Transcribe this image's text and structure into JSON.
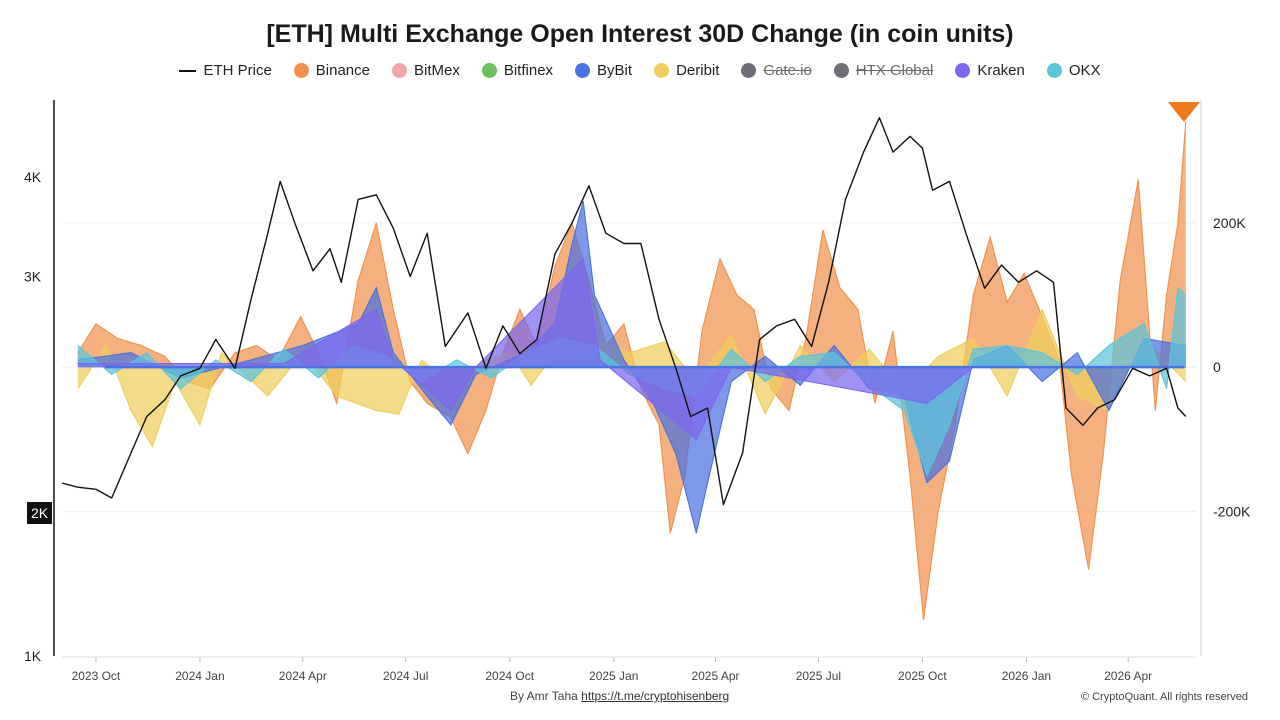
{
  "title": "[ETH] Multi Exchange Open Interest 30D Change (in coin units)",
  "legend": [
    {
      "label": "ETH Price",
      "kind": "line",
      "color": "#111111",
      "hidden": false
    },
    {
      "label": "Binance",
      "kind": "dot",
      "color": "#f0914d",
      "hidden": false
    },
    {
      "label": "BitMex",
      "kind": "dot",
      "color": "#f4a5a5",
      "hidden": false
    },
    {
      "label": "Bitfinex",
      "kind": "dot",
      "color": "#6cbf5c",
      "hidden": false
    },
    {
      "label": "ByBit",
      "kind": "dot",
      "color": "#4a72e0",
      "hidden": false
    },
    {
      "label": "Deribit",
      "kind": "dot",
      "color": "#efcd5c",
      "hidden": false
    },
    {
      "label": "Gate.io",
      "kind": "dot",
      "color": "#6e6e78",
      "hidden": true
    },
    {
      "label": "HTX Global",
      "kind": "dot",
      "color": "#6e6e78",
      "hidden": true
    },
    {
      "label": "Kraken",
      "kind": "dot",
      "color": "#7b68ee",
      "hidden": false
    },
    {
      "label": "OKX",
      "kind": "dot",
      "color": "#5bc5dc",
      "hidden": false
    }
  ],
  "price_marker_label": "2K",
  "footer": {
    "author": "By Amr Taha",
    "link": "https://t.me/cryptohisenberg",
    "copyright": "© CryptoQuant. All rights reserved"
  },
  "chart_data": {
    "type": "area",
    "x_axis": {
      "ticks": [
        "2023 Oct",
        "2024 Jan",
        "2024 Apr",
        "2024 Jul",
        "2024 Oct",
        "2025 Jan",
        "2025 Apr",
        "2025 Jul",
        "2025 Oct",
        "2026 Jan",
        "2026 Apr"
      ],
      "range": [
        "2023-09-01",
        "2026-05-31"
      ]
    },
    "y_left": {
      "label": "",
      "ticks": [
        "1K",
        "2K",
        "3K",
        "4K"
      ],
      "scale": "log",
      "range": [
        1000,
        5000
      ]
    },
    "y_right": {
      "label": "",
      "ticks": [
        "-200K",
        "0",
        "200K"
      ],
      "range": [
        -400000,
        370000
      ]
    },
    "grid": "horizontal",
    "price_series": {
      "name": "ETH Price",
      "points": [
        [
          "2023-09-01",
          1650
        ],
        [
          "2023-09-15",
          1630
        ],
        [
          "2023-10-01",
          1620
        ],
        [
          "2023-10-15",
          1580
        ],
        [
          "2023-11-01",
          1800
        ],
        [
          "2023-11-15",
          2000
        ],
        [
          "2023-12-01",
          2100
        ],
        [
          "2023-12-15",
          2250
        ],
        [
          "2024-01-01",
          2300
        ],
        [
          "2024-01-15",
          2500
        ],
        [
          "2024-02-01",
          2300
        ],
        [
          "2024-02-15",
          2800
        ],
        [
          "2024-03-01",
          3400
        ],
        [
          "2024-03-12",
          3950
        ],
        [
          "2024-03-25",
          3500
        ],
        [
          "2024-04-10",
          3050
        ],
        [
          "2024-04-25",
          3250
        ],
        [
          "2024-05-05",
          2950
        ],
        [
          "2024-05-20",
          3750
        ],
        [
          "2024-06-05",
          3800
        ],
        [
          "2024-06-20",
          3450
        ],
        [
          "2024-07-05",
          3000
        ],
        [
          "2024-07-20",
          3400
        ],
        [
          "2024-08-05",
          2450
        ],
        [
          "2024-08-25",
          2700
        ],
        [
          "2024-09-10",
          2300
        ],
        [
          "2024-09-25",
          2600
        ],
        [
          "2024-10-10",
          2400
        ],
        [
          "2024-10-25",
          2500
        ],
        [
          "2024-11-10",
          3200
        ],
        [
          "2024-11-25",
          3500
        ],
        [
          "2024-12-10",
          3900
        ],
        [
          "2024-12-25",
          3400
        ],
        [
          "2025-01-10",
          3300
        ],
        [
          "2025-01-25",
          3300
        ],
        [
          "2025-02-10",
          2650
        ],
        [
          "2025-02-25",
          2300
        ],
        [
          "2025-03-10",
          2000
        ],
        [
          "2025-03-25",
          2050
        ],
        [
          "2025-04-08",
          1550
        ],
        [
          "2025-04-25",
          1800
        ],
        [
          "2025-05-10",
          2500
        ],
        [
          "2025-05-25",
          2600
        ],
        [
          "2025-06-10",
          2650
        ],
        [
          "2025-06-25",
          2450
        ],
        [
          "2025-07-10",
          2950
        ],
        [
          "2025-07-25",
          3750
        ],
        [
          "2025-08-10",
          4300
        ],
        [
          "2025-08-24",
          4750
        ],
        [
          "2025-09-05",
          4300
        ],
        [
          "2025-09-20",
          4500
        ],
        [
          "2025-10-01",
          4350
        ],
        [
          "2025-10-10",
          3850
        ],
        [
          "2025-10-25",
          3950
        ],
        [
          "2025-11-10",
          3350
        ],
        [
          "2025-11-25",
          2900
        ],
        [
          "2025-12-10",
          3100
        ],
        [
          "2025-12-25",
          2950
        ],
        [
          "2026-01-10",
          3050
        ],
        [
          "2026-01-25",
          2950
        ],
        [
          "2026-02-05",
          2050
        ],
        [
          "2026-02-20",
          1950
        ],
        [
          "2026-03-05",
          2050
        ],
        [
          "2026-03-20",
          2100
        ],
        [
          "2026-04-05",
          2300
        ],
        [
          "2026-04-20",
          2250
        ],
        [
          "2026-05-05",
          2300
        ],
        [
          "2026-05-15",
          2050
        ],
        [
          "2026-05-22",
          2000
        ]
      ]
    },
    "oi_series": [
      {
        "name": "Binance",
        "points": [
          [
            "2023-09-15",
            20000
          ],
          [
            "2023-10-01",
            60000
          ],
          [
            "2023-10-20",
            40000
          ],
          [
            "2023-11-10",
            30000
          ],
          [
            "2023-12-01",
            15000
          ],
          [
            "2023-12-20",
            -20000
          ],
          [
            "2024-01-10",
            -30000
          ],
          [
            "2024-02-01",
            20000
          ],
          [
            "2024-02-20",
            30000
          ],
          [
            "2024-03-10",
            10000
          ],
          [
            "2024-03-30",
            70000
          ],
          [
            "2024-04-15",
            20000
          ],
          [
            "2024-05-01",
            -50000
          ],
          [
            "2024-05-20",
            120000
          ],
          [
            "2024-06-05",
            200000
          ],
          [
            "2024-06-20",
            80000
          ],
          [
            "2024-07-05",
            -20000
          ],
          [
            "2024-07-20",
            -50000
          ],
          [
            "2024-08-10",
            -70000
          ],
          [
            "2024-08-25",
            -120000
          ],
          [
            "2024-09-10",
            -60000
          ],
          [
            "2024-09-25",
            20000
          ],
          [
            "2024-10-10",
            80000
          ],
          [
            "2024-10-25",
            30000
          ],
          [
            "2024-11-10",
            140000
          ],
          [
            "2024-11-25",
            200000
          ],
          [
            "2024-12-10",
            120000
          ],
          [
            "2024-12-25",
            30000
          ],
          [
            "2025-01-10",
            60000
          ],
          [
            "2025-01-25",
            -30000
          ],
          [
            "2025-02-10",
            -80000
          ],
          [
            "2025-02-20",
            -230000
          ],
          [
            "2025-03-05",
            -150000
          ],
          [
            "2025-03-20",
            50000
          ],
          [
            "2025-04-05",
            150000
          ],
          [
            "2025-04-20",
            100000
          ],
          [
            "2025-05-05",
            80000
          ],
          [
            "2025-05-20",
            -30000
          ],
          [
            "2025-06-05",
            -60000
          ],
          [
            "2025-06-20",
            40000
          ],
          [
            "2025-07-05",
            190000
          ],
          [
            "2025-07-20",
            110000
          ],
          [
            "2025-08-05",
            80000
          ],
          [
            "2025-08-20",
            -50000
          ],
          [
            "2025-09-05",
            50000
          ],
          [
            "2025-09-20",
            -150000
          ],
          [
            "2025-10-02",
            -350000
          ],
          [
            "2025-10-15",
            -200000
          ],
          [
            "2025-10-30",
            -80000
          ],
          [
            "2025-11-15",
            100000
          ],
          [
            "2025-11-30",
            180000
          ],
          [
            "2025-12-15",
            90000
          ],
          [
            "2025-12-30",
            130000
          ],
          [
            "2026-01-15",
            70000
          ],
          [
            "2026-01-30",
            10000
          ],
          [
            "2026-02-10",
            -150000
          ],
          [
            "2026-02-25",
            -280000
          ],
          [
            "2026-03-10",
            -120000
          ],
          [
            "2026-03-25",
            120000
          ],
          [
            "2026-04-10",
            260000
          ],
          [
            "2026-04-25",
            -60000
          ],
          [
            "2026-05-05",
            100000
          ],
          [
            "2026-05-15",
            200000
          ],
          [
            "2026-05-22",
            340000
          ]
        ]
      },
      {
        "name": "Deribit",
        "points": [
          [
            "2023-09-15",
            -30000
          ],
          [
            "2023-10-10",
            30000
          ],
          [
            "2023-11-01",
            -60000
          ],
          [
            "2023-11-20",
            -110000
          ],
          [
            "2023-12-10",
            -20000
          ],
          [
            "2024-01-01",
            -80000
          ],
          [
            "2024-01-20",
            20000
          ],
          [
            "2024-02-10",
            -10000
          ],
          [
            "2024-03-01",
            -40000
          ],
          [
            "2024-04-01",
            20000
          ],
          [
            "2024-05-01",
            -40000
          ],
          [
            "2024-06-05",
            -60000
          ],
          [
            "2024-06-25",
            -65000
          ],
          [
            "2024-07-15",
            10000
          ],
          [
            "2024-08-15",
            -30000
          ],
          [
            "2024-09-10",
            10000
          ],
          [
            "2024-10-01",
            20000
          ],
          [
            "2024-10-20",
            -25000
          ],
          [
            "2024-11-15",
            30000
          ],
          [
            "2024-12-15",
            40000
          ],
          [
            "2025-01-15",
            20000
          ],
          [
            "2025-02-15",
            35000
          ],
          [
            "2025-03-15",
            -20000
          ],
          [
            "2025-04-15",
            45000
          ],
          [
            "2025-05-15",
            -65000
          ],
          [
            "2025-06-15",
            30000
          ],
          [
            "2025-07-15",
            -20000
          ],
          [
            "2025-08-15",
            25000
          ],
          [
            "2025-09-15",
            -35000
          ],
          [
            "2025-10-15",
            15000
          ],
          [
            "2025-11-15",
            40000
          ],
          [
            "2025-12-15",
            -40000
          ],
          [
            "2026-01-15",
            80000
          ],
          [
            "2026-02-15",
            -40000
          ],
          [
            "2026-03-15",
            -60000
          ],
          [
            "2026-04-15",
            40000
          ],
          [
            "2026-05-22",
            -20000
          ]
        ]
      },
      {
        "name": "ByBit",
        "points": [
          [
            "2023-09-15",
            10000
          ],
          [
            "2023-11-01",
            20000
          ],
          [
            "2023-12-15",
            -15000
          ],
          [
            "2024-02-15",
            10000
          ],
          [
            "2024-04-01",
            30000
          ],
          [
            "2024-05-20",
            60000
          ],
          [
            "2024-06-05",
            110000
          ],
          [
            "2024-06-20",
            20000
          ],
          [
            "2024-07-20",
            -40000
          ],
          [
            "2024-08-10",
            -80000
          ],
          [
            "2024-09-01",
            -10000
          ],
          [
            "2024-10-15",
            20000
          ],
          [
            "2024-11-10",
            60000
          ],
          [
            "2024-11-25",
            170000
          ],
          [
            "2024-12-05",
            230000
          ],
          [
            "2024-12-15",
            100000
          ],
          [
            "2025-01-10",
            10000
          ],
          [
            "2025-02-05",
            -50000
          ],
          [
            "2025-02-25",
            -120000
          ],
          [
            "2025-03-15",
            -230000
          ],
          [
            "2025-03-25",
            -160000
          ],
          [
            "2025-04-15",
            -20000
          ],
          [
            "2025-05-15",
            15000
          ],
          [
            "2025-06-15",
            -25000
          ],
          [
            "2025-07-15",
            30000
          ],
          [
            "2025-08-15",
            -30000
          ],
          [
            "2025-09-15",
            -40000
          ],
          [
            "2025-10-05",
            -160000
          ],
          [
            "2025-10-25",
            -130000
          ],
          [
            "2025-11-15",
            10000
          ],
          [
            "2025-12-15",
            30000
          ],
          [
            "2026-01-15",
            -20000
          ],
          [
            "2026-02-15",
            20000
          ],
          [
            "2026-03-15",
            -60000
          ],
          [
            "2026-04-15",
            40000
          ],
          [
            "2026-05-22",
            30000
          ]
        ]
      },
      {
        "name": "OKX",
        "points": [
          [
            "2023-09-15",
            30000
          ],
          [
            "2023-10-15",
            -10000
          ],
          [
            "2023-11-15",
            20000
          ],
          [
            "2023-12-15",
            -30000
          ],
          [
            "2024-01-15",
            10000
          ],
          [
            "2024-02-15",
            -20000
          ],
          [
            "2024-03-15",
            25000
          ],
          [
            "2024-04-15",
            -15000
          ],
          [
            "2024-05-15",
            30000
          ],
          [
            "2024-06-15",
            15000
          ],
          [
            "2024-07-15",
            -20000
          ],
          [
            "2024-08-15",
            10000
          ],
          [
            "2024-09-15",
            -15000
          ],
          [
            "2024-10-15",
            20000
          ],
          [
            "2024-11-15",
            40000
          ],
          [
            "2024-12-15",
            30000
          ],
          [
            "2025-01-15",
            -10000
          ],
          [
            "2025-02-15",
            -30000
          ],
          [
            "2025-03-15",
            -40000
          ],
          [
            "2025-04-15",
            25000
          ],
          [
            "2025-05-15",
            -20000
          ],
          [
            "2025-06-15",
            15000
          ],
          [
            "2025-07-15",
            20000
          ],
          [
            "2025-08-15",
            -25000
          ],
          [
            "2025-09-15",
            -60000
          ],
          [
            "2025-10-05",
            -150000
          ],
          [
            "2025-10-25",
            -80000
          ],
          [
            "2025-11-15",
            25000
          ],
          [
            "2025-12-15",
            30000
          ],
          [
            "2026-01-15",
            20000
          ],
          [
            "2026-02-15",
            -10000
          ],
          [
            "2026-03-15",
            30000
          ],
          [
            "2026-04-15",
            60000
          ],
          [
            "2026-05-05",
            -30000
          ],
          [
            "2026-05-15",
            110000
          ],
          [
            "2026-05-22",
            100000
          ]
        ]
      },
      {
        "name": "Kraken",
        "points": [
          [
            "2023-09-15",
            5000
          ],
          [
            "2024-03-15",
            5000
          ],
          [
            "2024-06-05",
            80000
          ],
          [
            "2024-06-20",
            10000
          ],
          [
            "2024-08-10",
            -60000
          ],
          [
            "2024-09-01",
            0
          ],
          [
            "2024-12-05",
            150000
          ],
          [
            "2024-12-20",
            10000
          ],
          [
            "2025-03-15",
            -100000
          ],
          [
            "2025-04-15",
            0
          ],
          [
            "2025-10-05",
            -50000
          ],
          [
            "2025-11-15",
            0
          ],
          [
            "2026-05-22",
            0
          ]
        ]
      }
    ]
  }
}
